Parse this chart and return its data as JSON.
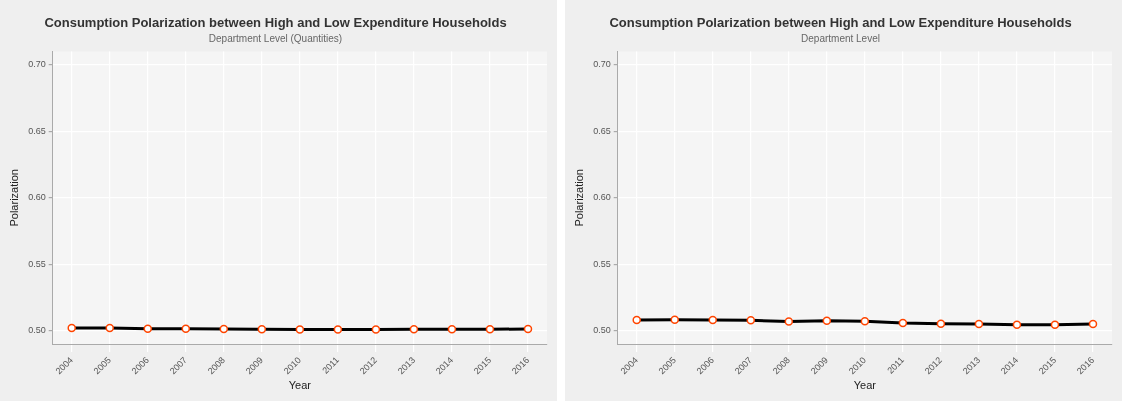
{
  "chart_data": [
    {
      "type": "line",
      "title": "Consumption Polarization between High and Low Expenditure Households",
      "subtitle": "Department Level (Quantities)",
      "xlabel": "Year",
      "ylabel": "Polarization",
      "categories": [
        "2004",
        "2005",
        "2006",
        "2007",
        "2008",
        "2009",
        "2010",
        "2011",
        "2012",
        "2013",
        "2014",
        "2015",
        "2016"
      ],
      "series": [
        {
          "color": "#000000",
          "values": [
            0.502,
            0.502,
            0.5015,
            0.5015,
            0.5013,
            0.5011,
            0.501,
            0.501,
            0.501,
            0.5011,
            0.5011,
            0.5011,
            0.5013
          ]
        }
      ],
      "ylim": [
        0.49,
        0.71
      ],
      "yticks": [
        {
          "value": 0.5,
          "label": "0.50"
        },
        {
          "value": 0.55,
          "label": "0.55"
        },
        {
          "value": 0.6,
          "label": "0.60"
        },
        {
          "value": 0.65,
          "label": "0.65"
        },
        {
          "value": 0.7,
          "label": "0.70"
        }
      ],
      "grid": true,
      "legend": false,
      "marker": "circle",
      "line_style": "solid"
    },
    {
      "type": "line",
      "title": "Consumption Polarization between High and Low Expenditure Households",
      "subtitle": "Department Level",
      "xlabel": "Year",
      "ylabel": "Polarization",
      "categories": [
        "2004",
        "2005",
        "2006",
        "2007",
        "2008",
        "2009",
        "2010",
        "2011",
        "2012",
        "2013",
        "2014",
        "2015",
        "2016"
      ],
      "series": [
        {
          "color": "#000000",
          "values": [
            0.508,
            0.5082,
            0.508,
            0.5078,
            0.507,
            0.5075,
            0.5071,
            0.5058,
            0.5052,
            0.505,
            0.5045,
            0.5044,
            0.505
          ]
        }
      ],
      "ylim": [
        0.49,
        0.71
      ],
      "yticks": [
        {
          "value": 0.5,
          "label": "0.50"
        },
        {
          "value": 0.55,
          "label": "0.55"
        },
        {
          "value": 0.6,
          "label": "0.60"
        },
        {
          "value": 0.65,
          "label": "0.65"
        },
        {
          "value": 0.7,
          "label": "0.70"
        }
      ],
      "grid": true,
      "legend": false,
      "marker": "circle",
      "line_style": "solid"
    }
  ]
}
